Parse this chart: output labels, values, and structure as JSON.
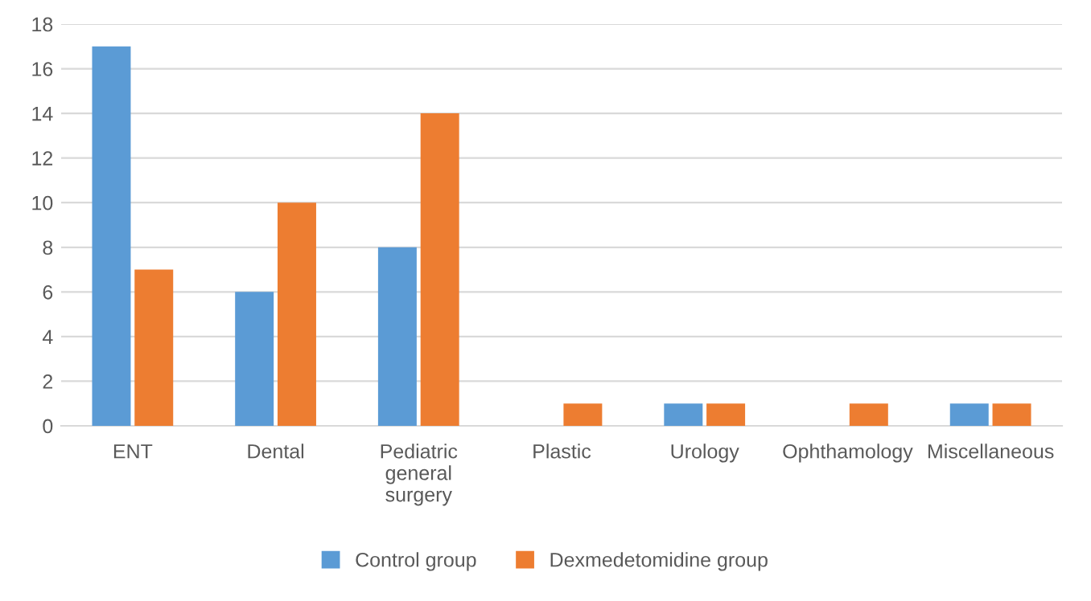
{
  "chart_data": {
    "type": "bar",
    "categories": [
      "ENT",
      "Dental",
      "Pediatric general surgery",
      "Plastic",
      "Urology",
      "Ophthamology",
      "Miscellaneous"
    ],
    "series": [
      {
        "name": "Control group",
        "color": "#5b9bd5",
        "values": [
          17,
          6,
          8,
          0,
          1,
          0,
          1
        ]
      },
      {
        "name": "Dexmedetomidine group",
        "color": "#ed7d31",
        "values": [
          7,
          10,
          14,
          1,
          1,
          1,
          1
        ]
      }
    ],
    "ylim": [
      0,
      18
    ],
    "yticks": [
      0,
      2,
      4,
      6,
      8,
      10,
      12,
      14,
      16,
      18
    ],
    "grid": "y",
    "legend": "bottom"
  }
}
